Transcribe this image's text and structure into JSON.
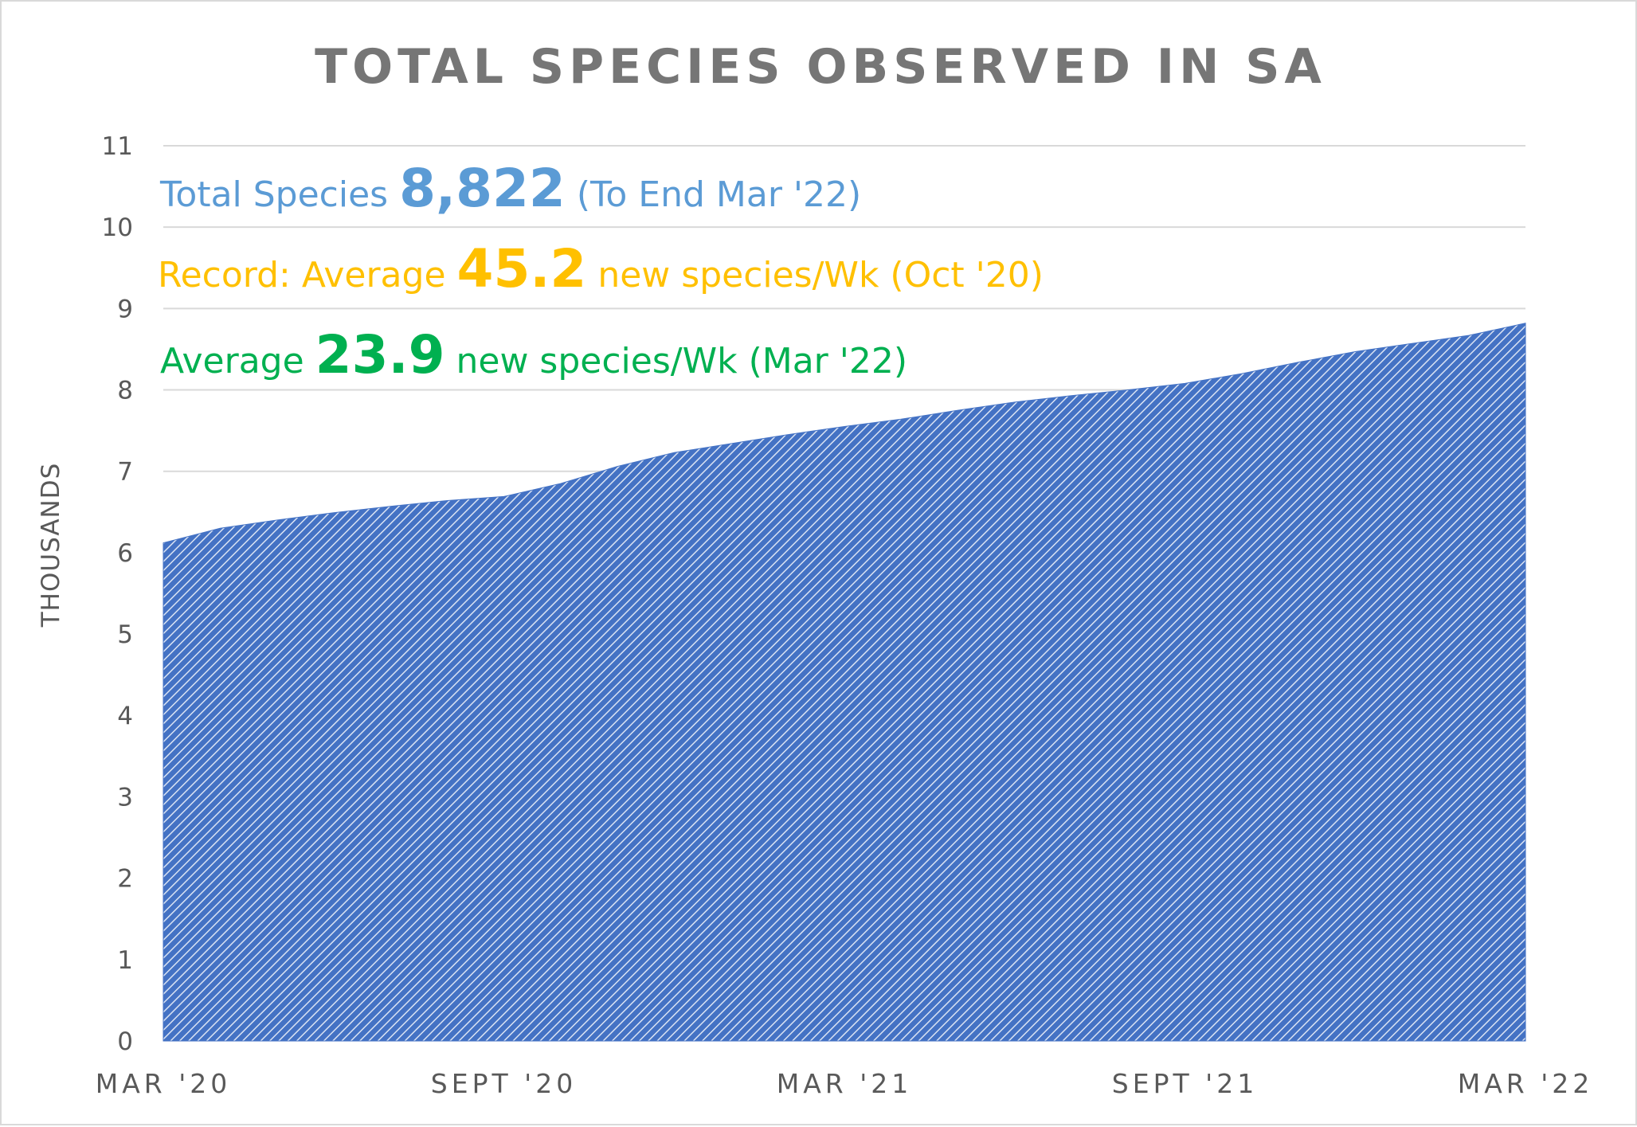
{
  "chart_data": {
    "type": "area",
    "title": "TOTAL SPECIES OBSERVED IN SA",
    "ylabel": "THOUSANDS",
    "xlabel": "",
    "ylim": [
      0,
      11
    ],
    "y_ticks": [
      "0",
      "1",
      "2",
      "3",
      "4",
      "5",
      "6",
      "7",
      "8",
      "9",
      "10",
      "11"
    ],
    "grid": true,
    "legend": "none",
    "x_ticks": [
      {
        "label": "MAR '20",
        "month": 0
      },
      {
        "label": "SEPT '20",
        "month": 6
      },
      {
        "label": "MAR '21",
        "month": 12
      },
      {
        "label": "SEPT '21",
        "month": 18
      },
      {
        "label": "MAR '22",
        "month": 24
      }
    ],
    "series": [
      {
        "color": "#4472c4",
        "points": [
          {
            "month": 0,
            "value": 6.12
          },
          {
            "month": 1,
            "value": 6.3
          },
          {
            "month": 2,
            "value": 6.4
          },
          {
            "month": 3,
            "value": 6.49
          },
          {
            "month": 4,
            "value": 6.57
          },
          {
            "month": 5,
            "value": 6.64
          },
          {
            "month": 6,
            "value": 6.69
          },
          {
            "month": 7,
            "value": 6.85
          },
          {
            "month": 8,
            "value": 7.06
          },
          {
            "month": 9,
            "value": 7.23
          },
          {
            "month": 10,
            "value": 7.34
          },
          {
            "month": 11,
            "value": 7.45
          },
          {
            "month": 12,
            "value": 7.55
          },
          {
            "month": 13,
            "value": 7.64
          },
          {
            "month": 14,
            "value": 7.75
          },
          {
            "month": 15,
            "value": 7.85
          },
          {
            "month": 16,
            "value": 7.93
          },
          {
            "month": 17,
            "value": 8.0
          },
          {
            "month": 18,
            "value": 8.08
          },
          {
            "month": 19,
            "value": 8.2
          },
          {
            "month": 20,
            "value": 8.34
          },
          {
            "month": 21,
            "value": 8.47
          },
          {
            "month": 22,
            "value": 8.57
          },
          {
            "month": 23,
            "value": 8.67
          },
          {
            "month": 24,
            "value": 8.82
          }
        ]
      }
    ],
    "annotations": [
      {
        "prefix": "Total Species ",
        "value": "8,822",
        "suffix": " (To End Mar '22)",
        "color": "#5b9bd5"
      },
      {
        "prefix": "Record: Average ",
        "value": "45.2",
        "suffix": " new species/Wk (Oct '20)",
        "color": "#ffc000"
      },
      {
        "prefix": "Average ",
        "value": "23.9",
        "suffix": " new species/Wk (Mar '22)",
        "color": "#00b050"
      }
    ],
    "colors": {
      "title": "#767676",
      "ticks": "#595959",
      "grid": "#d9d9d9",
      "area_fill": "#4472c4",
      "area_hatch": "#dae3f3"
    }
  }
}
